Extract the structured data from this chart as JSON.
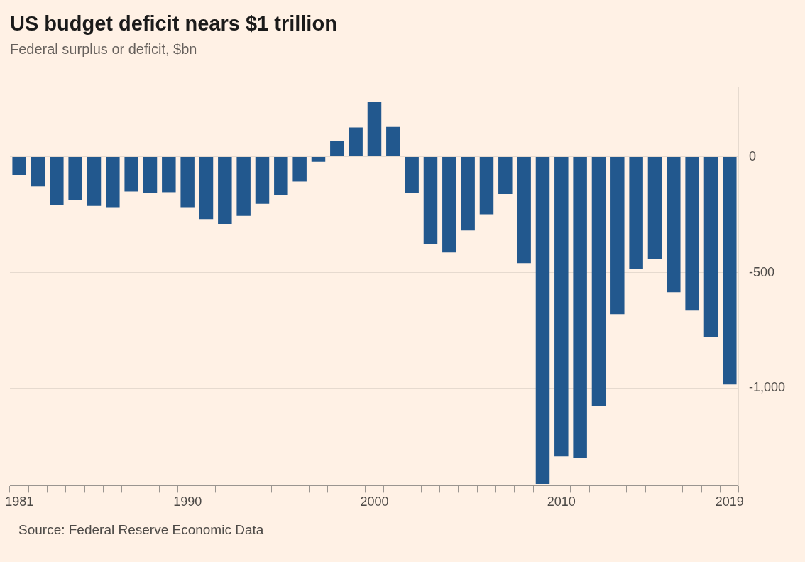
{
  "chart_data": {
    "type": "bar",
    "title": "US budget deficit nears $1 trillion",
    "subtitle": "Federal surplus or deficit, $bn",
    "categories": [
      "1981",
      null,
      null,
      null,
      null,
      null,
      null,
      null,
      null,
      "1990",
      null,
      null,
      null,
      null,
      null,
      null,
      null,
      null,
      null,
      "2000",
      null,
      null,
      null,
      null,
      null,
      null,
      null,
      null,
      null,
      "2010",
      null,
      null,
      null,
      null,
      null,
      null,
      null,
      null,
      "2019"
    ],
    "values": [
      -79,
      -128,
      -208,
      -185,
      -212,
      -221,
      -150,
      -155,
      -153,
      -221,
      -269,
      -290,
      -255,
      -203,
      -164,
      -107,
      -22,
      69,
      126,
      236,
      128,
      -158,
      -378,
      -413,
      -318,
      -248,
      -161,
      -459,
      -1413,
      -1294,
      -1300,
      -1077,
      -680,
      -485,
      -442,
      -585,
      -665,
      -779,
      -984
    ],
    "color": "#22588e",
    "ylim": [
      -1420,
      300
    ],
    "yticks": [
      {
        "value": 0,
        "label": "0"
      },
      {
        "value": -500,
        "label": "-500"
      },
      {
        "value": -1000,
        "label": "-1,000"
      }
    ],
    "grid": "y",
    "legend": false,
    "annotations": [
      "Source: Federal Reserve Economic Data"
    ]
  }
}
